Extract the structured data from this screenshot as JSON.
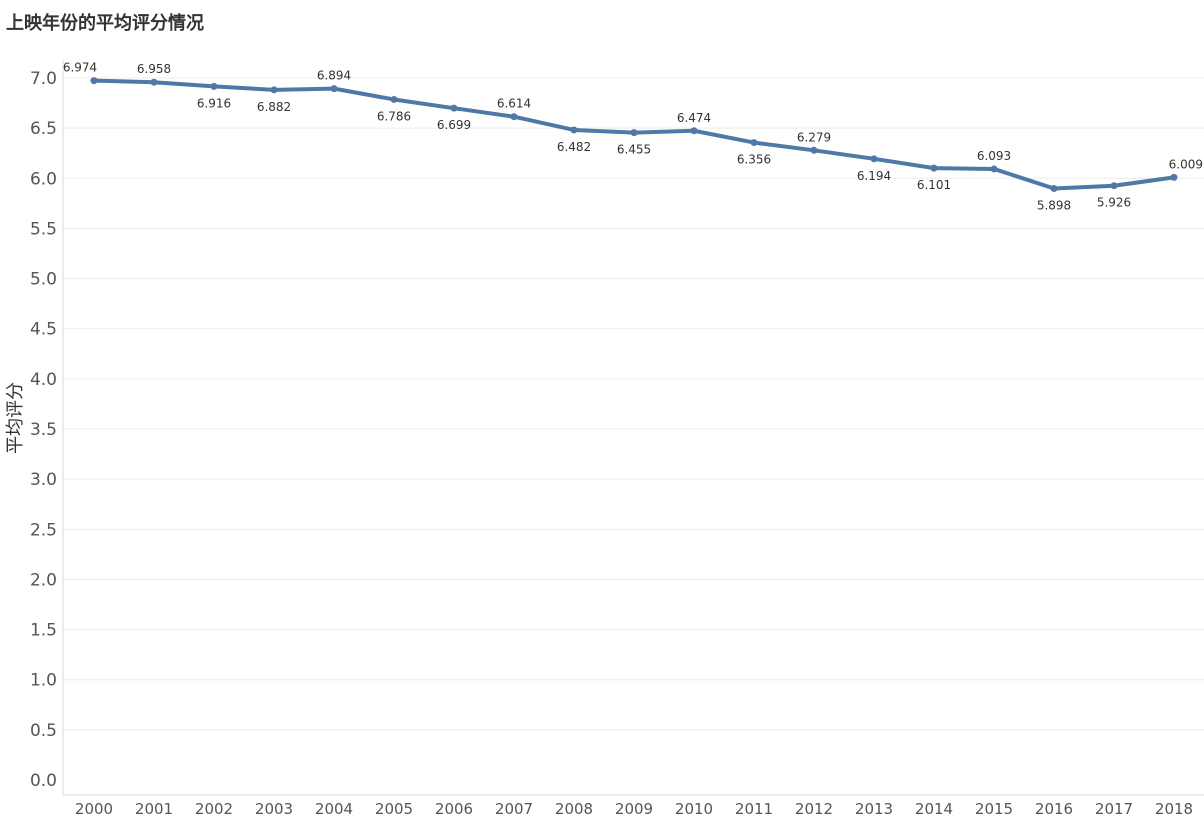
{
  "chart_data": {
    "type": "line",
    "title": "上映年份的平均评分情况",
    "xlabel": "",
    "ylabel": "平均评分",
    "ylim": [
      0,
      7.0
    ],
    "y_ticks": [
      "0.0",
      "0.5",
      "1.0",
      "1.5",
      "2.0",
      "2.5",
      "3.0",
      "3.5",
      "4.0",
      "4.5",
      "5.0",
      "5.5",
      "6.0",
      "6.5",
      "7.0"
    ],
    "categories": [
      "2000",
      "2001",
      "2002",
      "2003",
      "2004",
      "2005",
      "2006",
      "2007",
      "2008",
      "2009",
      "2010",
      "2011",
      "2012",
      "2013",
      "2014",
      "2015",
      "2016",
      "2017",
      "2018"
    ],
    "values": [
      6.974,
      6.958,
      6.916,
      6.882,
      6.894,
      6.786,
      6.699,
      6.614,
      6.482,
      6.455,
      6.474,
      6.356,
      6.279,
      6.194,
      6.101,
      6.093,
      5.898,
      5.926,
      6.009
    ],
    "data_labels": [
      "6.974",
      "6.958",
      "6.916",
      "6.882",
      "6.894",
      "6.786",
      "6.699",
      "6.614",
      "6.482",
      "6.455",
      "6.474",
      "6.356",
      "6.279",
      "6.194",
      "6.101",
      "6.093",
      "5.898",
      "5.926",
      "6.009"
    ],
    "label_positions": [
      "above",
      "above",
      "below",
      "below",
      "above",
      "below",
      "below",
      "above",
      "below",
      "below",
      "above",
      "below",
      "above",
      "below",
      "below",
      "above",
      "below",
      "below",
      "above"
    ],
    "grid": true,
    "line_color": "#4e79a7"
  }
}
